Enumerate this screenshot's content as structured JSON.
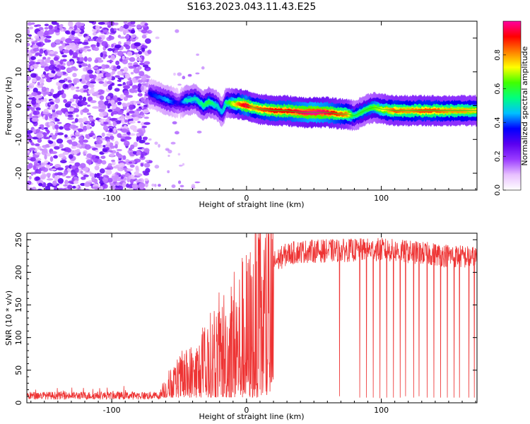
{
  "title": "S163.2023.043.11.43.E25",
  "chart_data": [
    {
      "type": "heatmap",
      "xlabel": "Height of straight line (km)",
      "ylabel": "Frequency (Hz)",
      "xlim": [
        -163,
        171
      ],
      "ylim": [
        -25,
        25
      ],
      "xticks": [
        -100,
        0,
        100
      ],
      "yticks": [
        -20,
        -10,
        0,
        10,
        20
      ],
      "colorbar": {
        "label": "Normalized spectral amplitude",
        "range": [
          0,
          1
        ],
        "ticks": [
          0.0,
          0.2,
          0.4,
          0.6,
          0.8
        ],
        "colormap": [
          "#ffffff",
          "#e8c0ff",
          "#9a3cff",
          "#5a00f0",
          "#0000ff",
          "#00c0ff",
          "#00ff80",
          "#40ff00",
          "#ffff00",
          "#ff8000",
          "#ff0000",
          "#ff00a0"
        ]
      },
      "noise_region_x": [
        -163,
        -72
      ],
      "ridge": {
        "x": [
          -72,
          -65,
          -58,
          -50,
          -45,
          -38,
          -32,
          -28,
          -22,
          -18,
          -15,
          -10,
          -5,
          0,
          5,
          10,
          20,
          30,
          40,
          50,
          60,
          70,
          75,
          80,
          85,
          90,
          95,
          100,
          110,
          120,
          130,
          140,
          150,
          160,
          171
        ],
        "y": [
          3.5,
          2.5,
          1.5,
          0.5,
          1.5,
          2.0,
          0.0,
          1.0,
          0.0,
          -2.0,
          1.0,
          0.5,
          0.5,
          0.0,
          -0.5,
          -1.0,
          -1.5,
          -1.5,
          -2.0,
          -2.0,
          -2.0,
          -2.5,
          -2.5,
          -3.0,
          -2.0,
          -1.0,
          -0.5,
          -1.0,
          -1.5,
          -1.5,
          -1.5,
          -1.5,
          -1.5,
          -1.5,
          -1.5
        ],
        "amplitude": [
          0.35,
          0.4,
          0.45,
          0.3,
          0.5,
          0.5,
          0.55,
          0.6,
          0.5,
          0.45,
          0.55,
          0.7,
          0.85,
          0.95,
          0.8,
          0.85,
          0.9,
          0.9,
          0.95,
          1.0,
          0.95,
          0.85,
          0.8,
          0.55,
          0.6,
          0.6,
          0.65,
          0.7,
          0.85,
          0.8,
          0.85,
          0.85,
          0.8,
          0.8,
          0.75
        ]
      }
    },
    {
      "type": "line",
      "xlabel": "Height of straight line (km)",
      "ylabel": "SNR (10 * v/v)",
      "xlim": [
        -163,
        171
      ],
      "ylim": [
        0,
        260
      ],
      "xticks": [
        -100,
        0,
        100
      ],
      "yticks": [
        0,
        50,
        100,
        150,
        200,
        250
      ],
      "series": [
        {
          "color": "#ee3333",
          "envelope_x": [
            -163,
            -64,
            -60,
            -50,
            -40,
            -30,
            -20,
            -10,
            0,
            10,
            20,
            30,
            40,
            100,
            171
          ],
          "envelope_y": [
            10,
            10,
            25,
            45,
            60,
            80,
            110,
            140,
            155,
            195,
            215,
            228,
            232,
            235,
            222
          ],
          "dropouts_x": [
            69,
            84,
            89,
            94,
            99,
            104,
            109,
            114,
            118,
            124,
            128,
            134,
            139,
            144,
            149,
            154,
            158,
            165,
            169
          ],
          "dropouts_y": [
            10,
            8,
            8,
            8,
            7,
            8,
            8,
            8,
            10,
            8,
            10,
            8,
            8,
            8,
            8,
            8,
            8,
            8,
            8
          ]
        }
      ]
    }
  ]
}
